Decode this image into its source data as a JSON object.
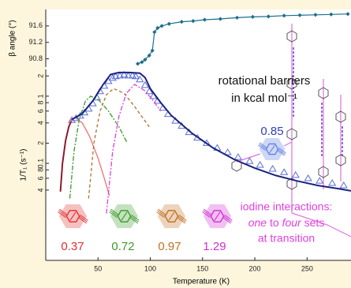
{
  "chart_data": [
    {
      "type": "line",
      "ylabel": "β angle (°)",
      "xlim": [
        0,
        292
      ],
      "ylim": [
        90.6,
        92.0
      ],
      "yticks": [
        90.8,
        91.2,
        91.6
      ],
      "series": [
        {
          "color": "#1b6f8a",
          "marker": "diamond",
          "x": [
            88,
            92,
            95,
            99,
            102,
            104,
            107,
            111,
            118,
            130,
            141,
            152,
            167,
            183,
            198,
            213,
            228,
            243,
            258,
            273,
            289
          ],
          "values": [
            90.68,
            90.72,
            90.78,
            90.88,
            91.0,
            91.45,
            91.55,
            91.6,
            91.65,
            91.7,
            91.72,
            91.75,
            91.77,
            91.8,
            91.82,
            91.83,
            91.85,
            91.86,
            91.87,
            91.88,
            91.89
          ]
        }
      ]
    },
    {
      "type": "scatter",
      "ylabel": "1/T₁ (s⁻¹)",
      "xlabel": "Temperature (K)",
      "xlim": [
        0,
        292
      ],
      "ylim": [
        0.0036,
        2.5
      ],
      "ylog": true,
      "xticks": [
        50,
        100,
        150,
        200,
        250
      ],
      "yticks": [
        2,
        1,
        {
          "value": 0.8,
          "label": "8"
        },
        {
          "value": 0.6,
          "label": "6"
        },
        {
          "value": 0.4,
          "label": "4"
        },
        {
          "value": 0.2,
          "label": "2"
        },
        0.1,
        {
          "value": 0.08,
          "label": "8"
        },
        {
          "value": 0.06,
          "label": "6"
        },
        {
          "value": 0.04,
          "label": "4"
        }
      ],
      "series": [
        {
          "kind": "scatter",
          "marker": "triangle",
          "color": "#5b6fd6",
          "x": [
            25,
            29,
            33,
            37,
            41,
            45,
            49,
            52,
            56,
            60,
            64,
            67,
            71,
            75,
            79,
            83,
            86,
            90,
            95,
            99,
            103,
            107,
            112,
            117,
            124,
            130,
            137,
            145,
            154,
            164,
            174,
            184,
            195,
            205,
            217,
            228,
            239,
            251,
            262,
            274,
            285
          ],
          "values": [
            0.44,
            0.47,
            0.51,
            0.57,
            0.65,
            0.78,
            0.95,
            1.18,
            1.42,
            1.67,
            1.86,
            1.97,
            2.02,
            2.08,
            2.02,
            2.02,
            1.97,
            1.77,
            1.46,
            1.18,
            1.0,
            0.85,
            0.67,
            0.54,
            0.43,
            0.36,
            0.29,
            0.24,
            0.2,
            0.17,
            0.146,
            0.124,
            0.108,
            0.095,
            0.083,
            0.074,
            0.067,
            0.06,
            0.055,
            0.051,
            0.047
          ]
        },
        {
          "kind": "line",
          "color": "#8b1a2b",
          "width": 2,
          "x": [
            14,
            16,
            19,
            22,
            25
          ],
          "values": [
            0.038,
            0.1,
            0.22,
            0.35,
            0.45
          ]
        },
        {
          "kind": "line",
          "color": "#f07070",
          "width": 1.3,
          "x": [
            22,
            28,
            35,
            42,
            50,
            56,
            61
          ],
          "values": [
            0.4,
            0.48,
            0.4,
            0.25,
            0.12,
            0.06,
            0.033
          ]
        },
        {
          "kind": "line",
          "color": "#3a9a2a",
          "width": 1.3,
          "dash": "6 2 2 2",
          "x": [
            23,
            27,
            32,
            38,
            43,
            50,
            60,
            70,
            78
          ],
          "values": [
            0.03,
            0.15,
            0.45,
            0.85,
            1.0,
            0.9,
            0.6,
            0.35,
            0.2
          ]
        },
        {
          "kind": "line",
          "color": "#b0702a",
          "width": 1.3,
          "dash": "4 3",
          "x": [
            41,
            46,
            52,
            58,
            65,
            75,
            85,
            99
          ],
          "values": [
            0.03,
            0.2,
            0.6,
            1.05,
            1.3,
            1.1,
            0.7,
            0.35
          ]
        },
        {
          "kind": "line",
          "color": "#e040e0",
          "width": 1.3,
          "dash": "6 2 2 2",
          "x": [
            58,
            64,
            70,
            77,
            85,
            95,
            103,
            110
          ],
          "values": [
            0.018,
            0.15,
            0.5,
            1.1,
            1.5,
            1.2,
            0.85,
            0.6
          ]
        },
        {
          "kind": "line",
          "color": "#1a237e",
          "width": 2,
          "x": [
            25,
            35,
            45,
            55,
            62,
            70,
            80,
            90,
            95,
            100,
            110,
            120,
            140,
            160,
            180,
            200,
            220,
            240,
            260,
            280,
            292
          ],
          "values": [
            0.45,
            0.55,
            0.85,
            1.5,
            2.1,
            2.25,
            2.25,
            2.2,
            1.9,
            1.3,
            0.8,
            0.52,
            0.28,
            0.17,
            0.115,
            0.085,
            0.066,
            0.055,
            0.047,
            0.042,
            0.039
          ]
        }
      ]
    }
  ],
  "labels": {
    "barriers_title": "rotational barriers",
    "barriers_unit": "in kcal mol⁻¹",
    "blue_barrier": 0.85,
    "iodine_line1": "iodine interactions:",
    "iodine_one": "one",
    "iodine_to": "to",
    "iodine_four": "four",
    "iodine_sets": "sets",
    "iodine_line3": "at transition",
    "barriers": [
      {
        "value": 0.37,
        "color": "#e03030"
      },
      {
        "value": 0.72,
        "color": "#3a9a2a"
      },
      {
        "value": 0.97,
        "color": "#c07020"
      },
      {
        "value": 1.29,
        "color": "#d030d0"
      }
    ]
  }
}
